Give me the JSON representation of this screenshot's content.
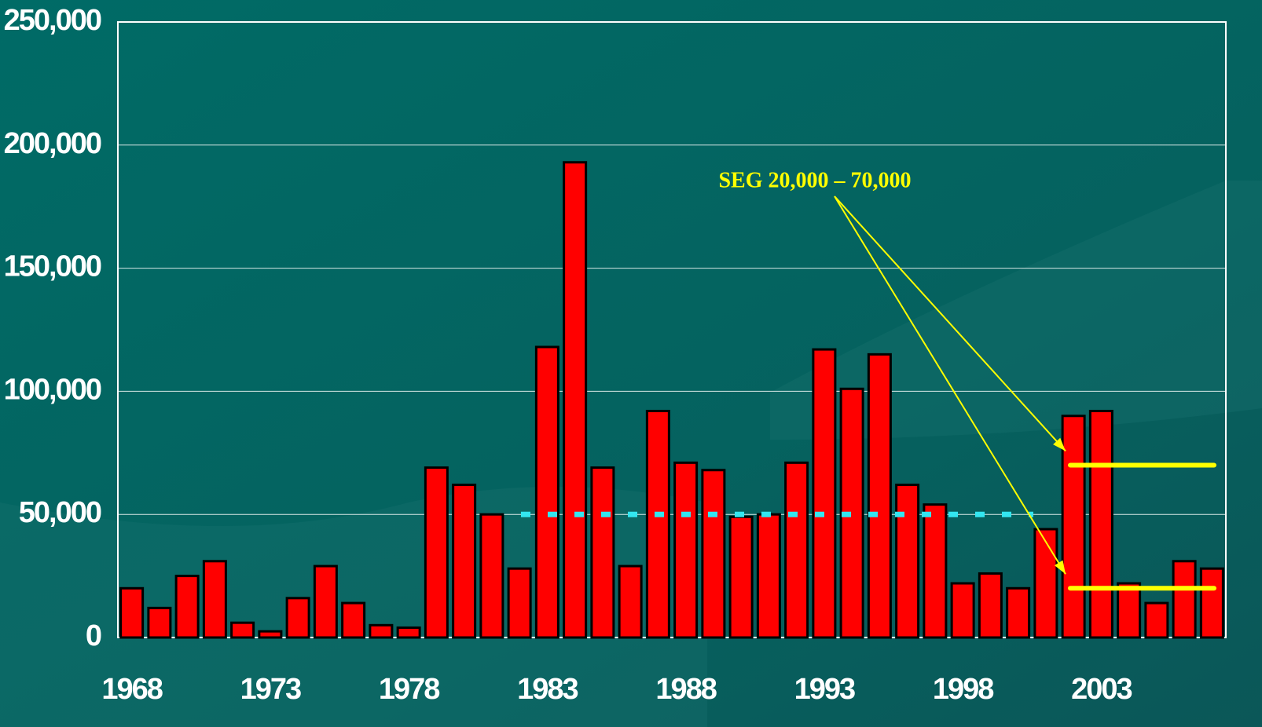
{
  "chart_data": {
    "type": "bar",
    "categories": [
      "1968",
      null,
      null,
      null,
      null,
      "1973",
      null,
      null,
      null,
      null,
      "1978",
      null,
      null,
      null,
      null,
      "1983",
      null,
      null,
      null,
      null,
      "1988",
      null,
      null,
      null,
      null,
      "1993",
      null,
      null,
      null,
      null,
      "1998",
      null,
      null,
      null,
      null,
      "2003",
      null,
      null,
      null,
      null
    ],
    "values": [
      20000,
      12000,
      25000,
      31000,
      6000,
      2500,
      16000,
      29000,
      14000,
      5000,
      4000,
      69000,
      62000,
      50000,
      28000,
      118000,
      193000,
      69000,
      29000,
      92000,
      71000,
      68000,
      49000,
      50000,
      71000,
      117000,
      101000,
      115000,
      62000,
      54000,
      22000,
      26000,
      20000,
      44000,
      90000,
      92000,
      22000,
      14000,
      31000,
      28000
    ],
    "color": "#ff0000",
    "ylim": [
      0,
      250000
    ],
    "yticks": [
      0,
      {
        "value": 50000,
        "label": "50,000"
      },
      {
        "value": 100000,
        "label": "100,000"
      },
      {
        "value": 150000,
        "label": "150,000"
      },
      {
        "value": 200000,
        "label": "200,000"
      },
      {
        "value": 250000,
        "label": "250,000"
      }
    ],
    "grid": true,
    "reference_lines": [
      {
        "value": 50000,
        "color": "#33e6f0",
        "style": "dotted"
      },
      {
        "value": 70000,
        "color": "#ffff00",
        "style": "solid"
      },
      {
        "value": 20000,
        "color": "#ffff00",
        "style": "solid"
      }
    ],
    "annotation": "SEG 20,000 – 70,000"
  }
}
